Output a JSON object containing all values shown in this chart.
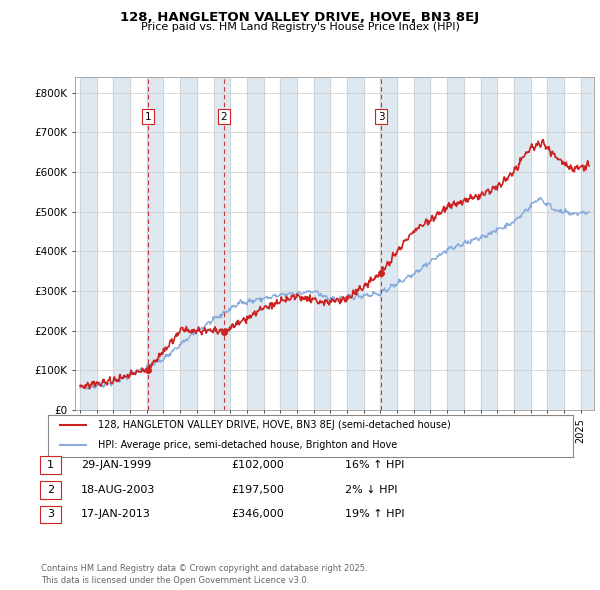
{
  "title_line1": "128, HANGLETON VALLEY DRIVE, HOVE, BN3 8EJ",
  "title_line2": "Price paid vs. HM Land Registry's House Price Index (HPI)",
  "background_color": "#ffffff",
  "plot_bg_color": "#ffffff",
  "sale_dates": [
    1999.08,
    2003.63,
    2013.05
  ],
  "sale_prices": [
    102000,
    197500,
    346000
  ],
  "sale_labels": [
    "1",
    "2",
    "3"
  ],
  "hpi_line_color": "#88aadd",
  "price_line_color": "#cc2222",
  "vline_color": "#cc2222",
  "ylim": [
    0,
    840000
  ],
  "yticks": [
    0,
    100000,
    200000,
    300000,
    400000,
    500000,
    600000,
    700000,
    800000
  ],
  "ytick_labels": [
    "£0",
    "£100K",
    "£200K",
    "£300K",
    "£400K",
    "£500K",
    "£600K",
    "£700K",
    "£800K"
  ],
  "legend_property_label": "128, HANGLETON VALLEY DRIVE, HOVE, BN3 8EJ (semi-detached house)",
  "legend_hpi_label": "HPI: Average price, semi-detached house, Brighton and Hove",
  "table_rows": [
    [
      "1",
      "29-JAN-1999",
      "£102,000",
      "16% ↑ HPI"
    ],
    [
      "2",
      "18-AUG-2003",
      "£197,500",
      "2% ↓ HPI"
    ],
    [
      "3",
      "17-JAN-2013",
      "£346,000",
      "19% ↑ HPI"
    ]
  ],
  "footer_text": "Contains HM Land Registry data © Crown copyright and database right 2025.\nThis data is licensed under the Open Government Licence v3.0.",
  "xlim_start": 1994.7,
  "xlim_end": 2025.8,
  "stripe_color": "#dde8f0"
}
